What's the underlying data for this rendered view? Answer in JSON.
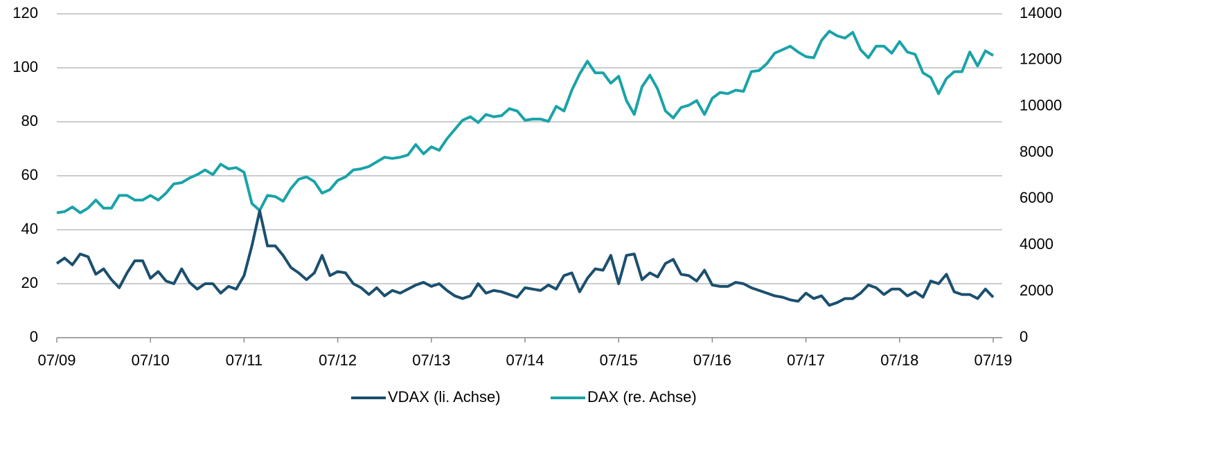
{
  "chart_data": {
    "type": "line",
    "categories": [
      "07/09",
      null,
      null,
      null,
      null,
      null,
      null,
      null,
      null,
      null,
      null,
      null,
      "07/10",
      null,
      null,
      null,
      null,
      null,
      null,
      null,
      null,
      null,
      null,
      null,
      "07/11",
      null,
      null,
      null,
      null,
      null,
      null,
      null,
      null,
      null,
      null,
      null,
      "07/12",
      null,
      null,
      null,
      null,
      null,
      null,
      null,
      null,
      null,
      null,
      null,
      "07/13",
      null,
      null,
      null,
      null,
      null,
      null,
      null,
      null,
      null,
      null,
      null,
      "07/14",
      null,
      null,
      null,
      null,
      null,
      null,
      null,
      null,
      null,
      null,
      null,
      "07/15",
      null,
      null,
      null,
      null,
      null,
      null,
      null,
      null,
      null,
      null,
      null,
      "07/16",
      null,
      null,
      null,
      null,
      null,
      null,
      null,
      null,
      null,
      null,
      null,
      "07/17",
      null,
      null,
      null,
      null,
      null,
      null,
      null,
      null,
      null,
      null,
      null,
      "07/18",
      null,
      null,
      null,
      null,
      null,
      null,
      null,
      null,
      null,
      null,
      null,
      "07/19"
    ],
    "series": [
      {
        "name": "VDAX (li. Achse)",
        "color": "#1b4f6e",
        "values": [
          27.5,
          29.5,
          27,
          31,
          30,
          23.5,
          25.5,
          21.5,
          18.5,
          24,
          28.5,
          28.5,
          22,
          24.5,
          21,
          20,
          25.5,
          20.5,
          18,
          20,
          20,
          16.5,
          19,
          18,
          23,
          34,
          47,
          34,
          34,
          30.5,
          26,
          24,
          21.5,
          24,
          30.5,
          23,
          24.5,
          24,
          20,
          18.5,
          16,
          18.5,
          15.5,
          17.5,
          16.5,
          18,
          19.5,
          20.5,
          19,
          20,
          17.5,
          15.5,
          14.5,
          15.5,
          20,
          16.5,
          17.5,
          17,
          16,
          15,
          18.5,
          18,
          17.5,
          19.5,
          18,
          23,
          24,
          17,
          22,
          25.5,
          25,
          30.5,
          20,
          30.5,
          31,
          21.5,
          24,
          22.5,
          27.5,
          29,
          23.5,
          23,
          21,
          25,
          19.5,
          19,
          19,
          20.5,
          20,
          18.5,
          17.5,
          16.5,
          15.5,
          15,
          14,
          13.5,
          16.5,
          14.5,
          15.5,
          12,
          13,
          14.5,
          14.5,
          16.5,
          19.5,
          18.5,
          16,
          18,
          18,
          15.5,
          17,
          15,
          21,
          20,
          23.5,
          17,
          16,
          16,
          14.5,
          18,
          15
        ]
      },
      {
        "name": "DAX (re. Achse)",
        "color": "#1aa3a8",
        "axis": "y2",
        "values": [
          5400,
          5450,
          5650,
          5400,
          5600,
          5950,
          5600,
          5600,
          6150,
          6150,
          5950,
          5950,
          6150,
          5950,
          6250,
          6650,
          6700,
          6900,
          7050,
          7250,
          7050,
          7500,
          7300,
          7350,
          7150,
          5800,
          5500,
          6150,
          6100,
          5900,
          6450,
          6850,
          6950,
          6750,
          6250,
          6400,
          6800,
          6950,
          7250,
          7300,
          7400,
          7600,
          7800,
          7750,
          7800,
          7900,
          8350,
          7950,
          8250,
          8100,
          8600,
          9000,
          9400,
          9550,
          9300,
          9650,
          9550,
          9600,
          9900,
          9800,
          9400,
          9450,
          9450,
          9350,
          10000,
          9800,
          10700,
          11400,
          11950,
          11450,
          11450,
          11000,
          11300,
          10250,
          9650,
          10850,
          11350,
          10750,
          9800,
          9500,
          9950,
          10050,
          10250,
          9650,
          10350,
          10600,
          10550,
          10700,
          10650,
          11500,
          11550,
          11850,
          12300,
          12450,
          12600,
          12350,
          12150,
          12100,
          12850,
          13250,
          13050,
          12950,
          13200,
          12450,
          12100,
          12600,
          12600,
          12300,
          12800,
          12350,
          12250,
          11450,
          11250,
          10550,
          11200,
          11500,
          11500,
          12350,
          11750,
          12400,
          12200
        ]
      }
    ],
    "ylim": [
      0,
      120
    ],
    "yticks": [
      0,
      20,
      40,
      60,
      80,
      100,
      120
    ],
    "y2lim": [
      0,
      14000
    ],
    "y2ticks": [
      0,
      2000,
      4000,
      6000,
      8000,
      10000,
      12000,
      14000
    ],
    "grid": true,
    "legend": "bottom"
  }
}
